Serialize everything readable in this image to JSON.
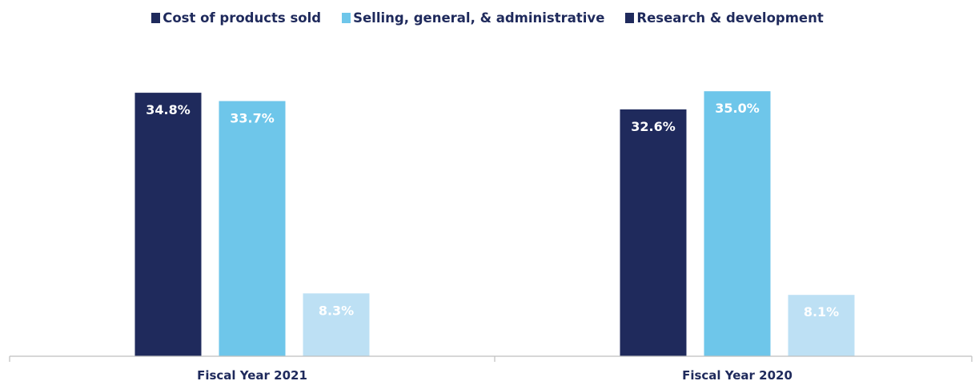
{
  "chart_data": {
    "type": "bar",
    "categories": [
      "Fiscal Year 2021",
      "Fiscal Year 2020"
    ],
    "series": [
      {
        "name": "Cost of products sold",
        "color": "#1f2a5c",
        "values": [
          34.8,
          32.6
        ],
        "labels": [
          "34.8%",
          "32.6%"
        ]
      },
      {
        "name": "Selling, general, & administrative",
        "color": "#6ec6ea",
        "values": [
          33.7,
          35.0
        ],
        "labels": [
          "33.7%",
          "35.0%"
        ]
      },
      {
        "name": "Research & development",
        "color": "#1f2a5c",
        "bar_color": "#bde0f4",
        "values": [
          8.3,
          8.1
        ],
        "labels": [
          "8.3%",
          "8.1%"
        ]
      }
    ],
    "ylim": [
      0,
      36.5
    ],
    "grid": false,
    "legend_position": "top-center"
  }
}
